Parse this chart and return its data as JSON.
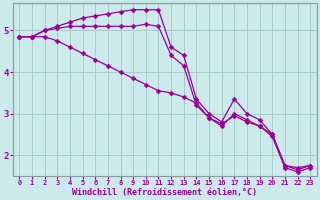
{
  "title": "",
  "xlabel": "Windchill (Refroidissement éolien,°C)",
  "background_color": "#cceaea",
  "grid_color": "#aacccc",
  "line_color": "#990099",
  "xlim": [
    -0.5,
    23.5
  ],
  "ylim": [
    1.5,
    5.65
  ],
  "yticks": [
    2,
    3,
    4,
    5
  ],
  "xticks": [
    0,
    1,
    2,
    3,
    4,
    5,
    6,
    7,
    8,
    9,
    10,
    11,
    12,
    13,
    14,
    15,
    16,
    17,
    18,
    19,
    20,
    21,
    22,
    23
  ],
  "series1": [
    4.85,
    4.85,
    5.0,
    5.1,
    5.2,
    5.3,
    5.35,
    5.4,
    5.45,
    5.5,
    5.5,
    5.5,
    4.6,
    4.4,
    3.35,
    3.0,
    2.8,
    3.35,
    3.0,
    2.85,
    2.5,
    1.75,
    1.65,
    1.75
  ],
  "series2": [
    4.85,
    4.85,
    5.0,
    5.05,
    5.1,
    5.1,
    5.1,
    5.1,
    5.1,
    5.1,
    5.15,
    5.1,
    4.4,
    4.15,
    3.2,
    2.9,
    2.7,
    3.0,
    2.85,
    2.7,
    2.45,
    1.7,
    1.6,
    1.7
  ],
  "series3": [
    4.85,
    4.85,
    4.85,
    4.75,
    4.6,
    4.45,
    4.3,
    4.15,
    4.0,
    3.85,
    3.7,
    3.55,
    3.5,
    3.4,
    3.25,
    2.9,
    2.75,
    2.95,
    2.8,
    2.7,
    2.5,
    1.75,
    1.7,
    1.75
  ]
}
